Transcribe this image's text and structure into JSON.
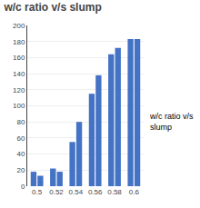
{
  "chart_data": {
    "type": "bar",
    "title": "w/c ratio v/s slump",
    "categories": [
      "0.5",
      "0.52",
      "0.54",
      "0.56",
      "0.58",
      "0.6"
    ],
    "series": [
      {
        "values": [
          18,
          22,
          55,
          115,
          164,
          183
        ],
        "color": "#4472C4"
      },
      {
        "values": [
          13,
          18,
          80,
          138,
          172,
          183
        ],
        "color": "#4472C4"
      }
    ],
    "ylim": [
      0,
      200
    ],
    "yticks": [
      0,
      20,
      40,
      60,
      80,
      100,
      120,
      140,
      160,
      180,
      200
    ],
    "grid": true,
    "annotations": [
      "w/c ratio v/s\nslump"
    ]
  }
}
